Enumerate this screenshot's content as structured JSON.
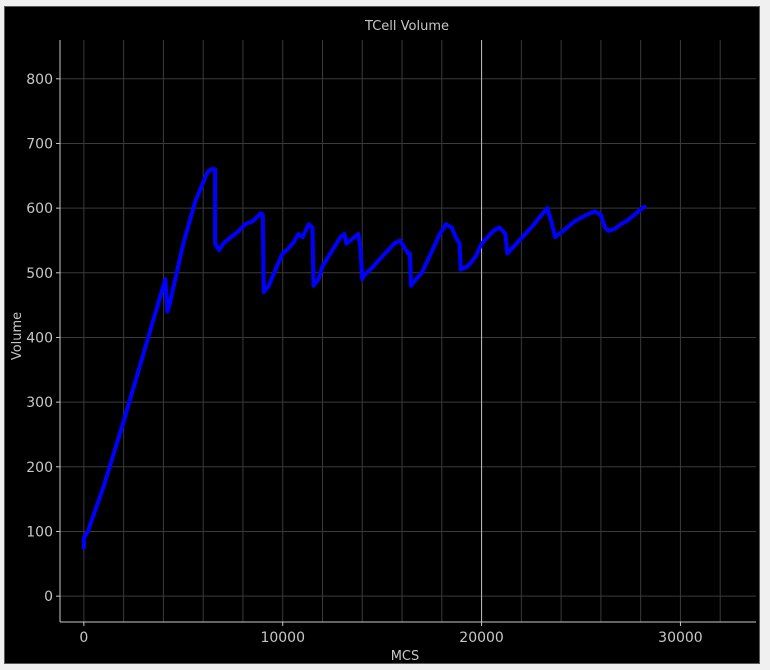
{
  "window": {
    "background": "#000000"
  },
  "chart_data": {
    "type": "line",
    "title": "TCell Volume",
    "xlabel": "MCS",
    "ylabel": "Volume",
    "xlim": [
      -1200,
      33800
    ],
    "ylim": [
      -40,
      860
    ],
    "xticks": [
      0,
      10000,
      20000,
      30000
    ],
    "yticks": [
      0,
      100,
      200,
      300,
      400,
      500,
      600,
      700,
      800
    ],
    "minor_x_step": 2000,
    "major_vertical_line_x": 20000,
    "grid": true,
    "colors": {
      "line": "#0000ff",
      "text": "#c8c8c8",
      "axis": "#c8c8c8",
      "grid": "#3a3a3a",
      "major_line": "#bdbdbd"
    },
    "series": [
      {
        "name": "",
        "x": [
          0,
          0,
          200,
          1000,
          2000,
          3000,
          4000,
          4100,
          4200,
          4300,
          5000,
          5600,
          6200,
          6400,
          6600,
          6600,
          6800,
          7000,
          7400,
          7800,
          8100,
          8500,
          8900,
          9000,
          9050,
          9300,
          9700,
          10000,
          10200,
          10500,
          10800,
          11000,
          11300,
          11500,
          11550,
          11800,
          12000,
          12300,
          12600,
          12900,
          13100,
          13200,
          13400,
          13800,
          13900,
          14000,
          14050,
          14400,
          14700,
          15000,
          15300,
          15600,
          15900,
          16100,
          16300,
          16400,
          16450,
          16700,
          17000,
          17300,
          17600,
          17900,
          18200,
          18500,
          18700,
          18900,
          18950,
          19300,
          19700,
          20000,
          20300,
          20600,
          20900,
          21200,
          21300,
          21600,
          21900,
          22200,
          22500,
          22900,
          23300,
          23500,
          23700,
          23900,
          24100,
          24300,
          24700,
          25000,
          25300,
          25700,
          26000,
          26200,
          26400,
          26700,
          27000,
          27300,
          27700,
          28000,
          28200
        ],
        "y": [
          75,
          90,
          100,
          170,
          270,
          375,
          480,
          490,
          440,
          450,
          545,
          610,
          655,
          660,
          660,
          545,
          535,
          545,
          555,
          565,
          575,
          580,
          592,
          590,
          470,
          480,
          510,
          530,
          535,
          545,
          560,
          555,
          575,
          570,
          480,
          490,
          510,
          525,
          540,
          555,
          560,
          545,
          550,
          560,
          540,
          490,
          495,
          505,
          515,
          525,
          535,
          545,
          550,
          540,
          530,
          530,
          480,
          490,
          500,
          520,
          540,
          560,
          575,
          570,
          555,
          545,
          505,
          510,
          525,
          545,
          555,
          565,
          570,
          560,
          530,
          540,
          550,
          560,
          570,
          585,
          600,
          580,
          555,
          560,
          565,
          570,
          580,
          585,
          590,
          595,
          590,
          570,
          565,
          568,
          575,
          580,
          590,
          598,
          602
        ]
      }
    ]
  }
}
